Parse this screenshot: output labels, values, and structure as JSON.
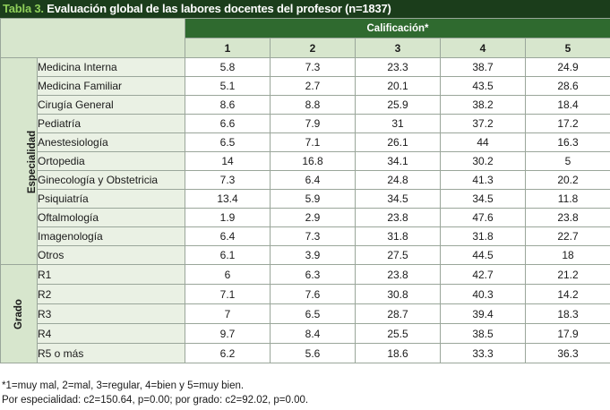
{
  "title": {
    "label": "Tabla 3.",
    "text": " Evaluación global de las labores docentes del profesor (n=1837)"
  },
  "header": {
    "calificacion": "Calificación*",
    "columns": [
      "1",
      "2",
      "3",
      "4",
      "5"
    ]
  },
  "groups": {
    "especialidad": {
      "label": "Especialidad",
      "rows": [
        {
          "name": "Medicina Interna",
          "values": [
            "5.8",
            "7.3",
            "23.3",
            "38.7",
            "24.9"
          ]
        },
        {
          "name": "Medicina Familiar",
          "values": [
            "5.1",
            "2.7",
            "20.1",
            "43.5",
            "28.6"
          ]
        },
        {
          "name": "Cirugía General",
          "values": [
            "8.6",
            "8.8",
            "25.9",
            "38.2",
            "18.4"
          ]
        },
        {
          "name": "Pediatría",
          "values": [
            "6.6",
            "7.9",
            "31",
            "37.2",
            "17.2"
          ]
        },
        {
          "name": "Anestesiología",
          "values": [
            "6.5",
            "7.1",
            "26.1",
            "44",
            "16.3"
          ]
        },
        {
          "name": "Ortopedia",
          "values": [
            "14",
            "16.8",
            "34.1",
            "30.2",
            "5"
          ]
        },
        {
          "name": "Ginecología y Obstetricia",
          "values": [
            "7.3",
            "6.4",
            "24.8",
            "41.3",
            "20.2"
          ]
        },
        {
          "name": "Psiquiatría",
          "values": [
            "13.4",
            "5.9",
            "34.5",
            "34.5",
            "11.8"
          ]
        },
        {
          "name": "Oftalmología",
          "values": [
            "1.9",
            "2.9",
            "23.8",
            "47.6",
            "23.8"
          ]
        },
        {
          "name": "Imagenología",
          "values": [
            "6.4",
            "7.3",
            "31.8",
            "31.8",
            "22.7"
          ]
        },
        {
          "name": "Otros",
          "values": [
            "6.1",
            "3.9",
            "27.5",
            "44.5",
            "18"
          ]
        }
      ]
    },
    "grado": {
      "label": "Grado",
      "rows": [
        {
          "name": "R1",
          "values": [
            "6",
            "6.3",
            "23.8",
            "42.7",
            "21.2"
          ]
        },
        {
          "name": "R2",
          "values": [
            "7.1",
            "7.6",
            "30.8",
            "40.3",
            "14.2"
          ]
        },
        {
          "name": "R3",
          "values": [
            "7",
            "6.5",
            "28.7",
            "39.4",
            "18.3"
          ]
        },
        {
          "name": "R4",
          "values": [
            "9.7",
            "8.4",
            "25.5",
            "38.5",
            "17.9"
          ]
        },
        {
          "name": "R5 o más",
          "values": [
            "6.2",
            "5.6",
            "18.6",
            "33.3",
            "36.3"
          ]
        }
      ]
    }
  },
  "notes": [
    "*1=muy mal, 2=mal, 3=regular, 4=bien y 5=muy bien.",
    "Por especialidad: c2=150.64, p=0.00; por grado: c2=92.02, p=0.00."
  ]
}
